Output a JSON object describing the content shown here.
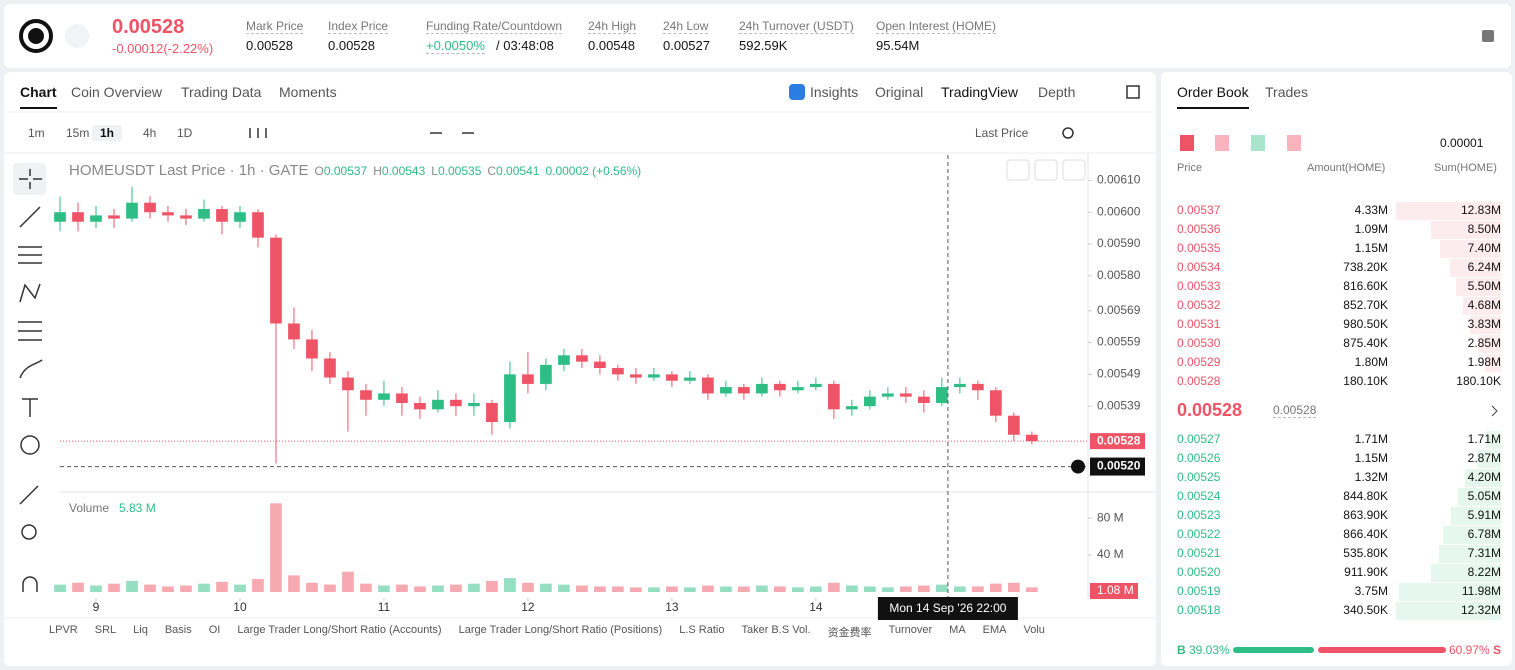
{
  "header": {
    "price": "0.00528",
    "change": "-0.00012(-2.22%)",
    "stats": [
      {
        "label": "Mark Price",
        "value": "0.00528"
      },
      {
        "label": "Index Price",
        "value": "0.00528"
      },
      {
        "label": "Funding Rate/Countdown",
        "value": "+0.0050%",
        "extra": "/ 03:48:08"
      },
      {
        "label": "24h High",
        "value": "0.00548"
      },
      {
        "label": "24h Low",
        "value": "0.00527"
      },
      {
        "label": "24h Turnover (USDT)",
        "value": "592.59K"
      },
      {
        "label": "Open Interest (HOME)",
        "value": "95.54M"
      }
    ]
  },
  "chart_panel": {
    "tabs": [
      "Chart",
      "Coin Overview",
      "Trading Data",
      "Moments"
    ],
    "views": [
      "Insights",
      "Original",
      "TradingView",
      "Depth"
    ],
    "intervals": [
      "1m",
      "15m",
      "1h",
      "4h",
      "1D"
    ],
    "price_type": "Last Price",
    "legend": {
      "symbol": "HOMEUSDT Last Price · 1h · GATE",
      "ohlc": [
        [
          "O",
          "0.00537"
        ],
        [
          "H",
          "0.00543"
        ],
        [
          "L",
          "0.00535"
        ],
        [
          "C",
          "0.00541"
        ]
      ],
      "change": "0.00002 (+0.56%)"
    },
    "indicators": [
      "LPVR",
      "SRL",
      "Liq",
      "Basis",
      "OI",
      "Large Trader Long/Short Ratio (Accounts)",
      "Large Trader Long/Short Ratio (Positions)",
      "L.S Ratio",
      "Taker B.S Vol.",
      "资金费率",
      "Turnover",
      "MA",
      "EMA",
      "Volu"
    ]
  },
  "chart_data": {
    "type": "candlestick",
    "up_color": "#2ebd85",
    "down_color": "#ef5466",
    "xlim": [
      8.75,
      15.89
    ],
    "xticks": [
      9,
      10,
      11,
      12,
      13,
      14
    ],
    "ylim": [
      0.00512,
      0.00618
    ],
    "yticks": [
      {
        "value": 0.0061,
        "label": "0.00610"
      },
      {
        "value": 0.006,
        "label": "0.00600"
      },
      {
        "value": 0.0059,
        "label": "0.00590"
      },
      {
        "value": 0.0058,
        "label": "0.00580"
      },
      {
        "value": 0.00569,
        "label": "0.00569"
      },
      {
        "value": 0.00559,
        "label": "0.00559"
      },
      {
        "value": 0.00549,
        "label": "0.00549"
      },
      {
        "value": 0.00539,
        "label": "0.00539"
      }
    ],
    "last_price": {
      "value": 0.00528,
      "label": "0.00528"
    },
    "cursor_price": {
      "value": 0.0052,
      "label": "0.00520"
    },
    "cursor_x": {
      "value": 14.917,
      "label": "Mon 14 Sep '26   22:00"
    },
    "candles": [
      [
        8.75,
        0.00597,
        0.00605,
        0.00594,
        0.006,
        8
      ],
      [
        8.875,
        0.006,
        0.00603,
        0.00594,
        0.00597,
        10
      ],
      [
        9.0,
        0.00597,
        0.00602,
        0.00595,
        0.00599,
        7
      ],
      [
        9.125,
        0.00599,
        0.00601,
        0.00595,
        0.00598,
        9
      ],
      [
        9.25,
        0.00598,
        0.00608,
        0.00597,
        0.00603,
        12
      ],
      [
        9.375,
        0.00603,
        0.00605,
        0.00598,
        0.006,
        8
      ],
      [
        9.5,
        0.006,
        0.00602,
        0.00597,
        0.00599,
        6
      ],
      [
        9.625,
        0.00599,
        0.00601,
        0.00596,
        0.00598,
        7
      ],
      [
        9.75,
        0.00598,
        0.00604,
        0.00597,
        0.00601,
        9
      ],
      [
        9.875,
        0.00601,
        0.00602,
        0.00593,
        0.00597,
        11
      ],
      [
        10.0,
        0.00597,
        0.00602,
        0.00595,
        0.006,
        8
      ],
      [
        10.125,
        0.006,
        0.00601,
        0.00589,
        0.00592,
        14
      ],
      [
        10.25,
        0.00592,
        0.00593,
        0.00521,
        0.00565,
        96
      ],
      [
        10.375,
        0.00565,
        0.0057,
        0.00557,
        0.0056,
        18
      ],
      [
        10.5,
        0.0056,
        0.00563,
        0.0055,
        0.00554,
        10
      ],
      [
        10.625,
        0.00554,
        0.00556,
        0.00546,
        0.00548,
        8
      ],
      [
        10.75,
        0.00548,
        0.0055,
        0.00531,
        0.00544,
        22
      ],
      [
        10.875,
        0.00544,
        0.00546,
        0.00536,
        0.00541,
        9
      ],
      [
        11.0,
        0.00541,
        0.00547,
        0.00539,
        0.00543,
        7
      ],
      [
        11.125,
        0.00543,
        0.00545,
        0.00536,
        0.0054,
        8
      ],
      [
        11.25,
        0.0054,
        0.00542,
        0.00535,
        0.00538,
        6
      ],
      [
        11.375,
        0.00538,
        0.00544,
        0.00537,
        0.00541,
        7
      ],
      [
        11.5,
        0.00541,
        0.00543,
        0.00536,
        0.00539,
        8
      ],
      [
        11.625,
        0.00539,
        0.00543,
        0.00536,
        0.0054,
        9
      ],
      [
        11.75,
        0.0054,
        0.00541,
        0.0053,
        0.00534,
        12
      ],
      [
        11.875,
        0.00534,
        0.00553,
        0.00532,
        0.00549,
        15
      ],
      [
        12.0,
        0.00549,
        0.00556,
        0.00543,
        0.00546,
        10
      ],
      [
        12.125,
        0.00546,
        0.00554,
        0.00544,
        0.00552,
        9
      ],
      [
        12.25,
        0.00552,
        0.00557,
        0.0055,
        0.00555,
        8
      ],
      [
        12.375,
        0.00555,
        0.00557,
        0.00551,
        0.00553,
        7
      ],
      [
        12.5,
        0.00553,
        0.00555,
        0.00549,
        0.00551,
        6
      ],
      [
        12.625,
        0.00551,
        0.00552,
        0.00547,
        0.00549,
        6
      ],
      [
        12.75,
        0.00549,
        0.00551,
        0.00546,
        0.00548,
        5
      ],
      [
        12.875,
        0.00548,
        0.00551,
        0.00547,
        0.00549,
        5
      ],
      [
        13.0,
        0.00549,
        0.0055,
        0.00545,
        0.00547,
        6
      ],
      [
        13.125,
        0.00547,
        0.0055,
        0.00546,
        0.00548,
        5
      ],
      [
        13.25,
        0.00548,
        0.00549,
        0.00541,
        0.00543,
        7
      ],
      [
        13.375,
        0.00543,
        0.00547,
        0.00542,
        0.00545,
        6
      ],
      [
        13.5,
        0.00545,
        0.00546,
        0.00541,
        0.00543,
        6
      ],
      [
        13.625,
        0.00543,
        0.00548,
        0.00542,
        0.00546,
        7
      ],
      [
        13.75,
        0.00546,
        0.00547,
        0.00542,
        0.00544,
        6
      ],
      [
        13.875,
        0.00544,
        0.00547,
        0.00543,
        0.00545,
        5
      ],
      [
        14.0,
        0.00545,
        0.00548,
        0.00544,
        0.00546,
        6
      ],
      [
        14.125,
        0.00546,
        0.00547,
        0.00535,
        0.00538,
        10
      ],
      [
        14.25,
        0.00538,
        0.00541,
        0.00536,
        0.00539,
        7
      ],
      [
        14.375,
        0.00539,
        0.00544,
        0.00538,
        0.00542,
        6
      ],
      [
        14.5,
        0.00542,
        0.00545,
        0.00541,
        0.00543,
        5
      ],
      [
        14.625,
        0.00543,
        0.00545,
        0.0054,
        0.00542,
        6
      ],
      [
        14.75,
        0.00542,
        0.00544,
        0.00537,
        0.0054,
        7
      ],
      [
        14.875,
        0.0054,
        0.00548,
        0.00539,
        0.00545,
        8
      ],
      [
        15.0,
        0.00545,
        0.00548,
        0.00543,
        0.00546,
        6
      ],
      [
        15.125,
        0.00546,
        0.00547,
        0.00541,
        0.00544,
        6
      ],
      [
        15.25,
        0.00544,
        0.00545,
        0.00534,
        0.00536,
        9
      ],
      [
        15.375,
        0.00536,
        0.00537,
        0.00528,
        0.0053,
        10
      ],
      [
        15.5,
        0.0053,
        0.00531,
        0.00527,
        0.00528,
        5
      ]
    ],
    "volume": {
      "title": "Volume",
      "current": "5.83 M",
      "ylim": [
        0,
        105
      ],
      "yticks": [
        {
          "value": 80,
          "label": "80 M"
        },
        {
          "value": 40,
          "label": "40 M"
        }
      ],
      "last": {
        "value": 1.08,
        "label": "1.08 M"
      }
    }
  },
  "order_book": {
    "tabs": [
      "Order Book",
      "Trades"
    ],
    "precision": "0.00001",
    "columns": [
      "Price",
      "Amount(HOME)",
      "Sum(HOME)"
    ],
    "asks": [
      [
        "0.00537",
        "4.33M",
        "12.83M"
      ],
      [
        "0.00536",
        "1.09M",
        "8.50M"
      ],
      [
        "0.00535",
        "1.15M",
        "7.40M"
      ],
      [
        "0.00534",
        "738.20K",
        "6.24M"
      ],
      [
        "0.00533",
        "816.60K",
        "5.50M"
      ],
      [
        "0.00532",
        "852.70K",
        "4.68M"
      ],
      [
        "0.00531",
        "980.50K",
        "3.83M"
      ],
      [
        "0.00530",
        "875.40K",
        "2.85M"
      ],
      [
        "0.00529",
        "1.80M",
        "1.98M"
      ],
      [
        "0.00528",
        "180.10K",
        "180.10K"
      ]
    ],
    "mid_price": "0.00528",
    "mark_price": "0.00528",
    "bids": [
      [
        "0.00527",
        "1.71M",
        "1.71M"
      ],
      [
        "0.00526",
        "1.15M",
        "2.87M"
      ],
      [
        "0.00525",
        "1.32M",
        "4.20M"
      ],
      [
        "0.00524",
        "844.80K",
        "5.05M"
      ],
      [
        "0.00523",
        "863.90K",
        "5.91M"
      ],
      [
        "0.00522",
        "866.40K",
        "6.78M"
      ],
      [
        "0.00521",
        "535.80K",
        "7.31M"
      ],
      [
        "0.00520",
        "911.90K",
        "8.22M"
      ],
      [
        "0.00519",
        "3.75M",
        "11.98M"
      ],
      [
        "0.00518",
        "340.50K",
        "12.32M"
      ]
    ],
    "buy_letter": "B",
    "buy": {
      "value": 39.03,
      "label": "39.03%"
    },
    "sell": {
      "value": 60.97,
      "label": "60.97%"
    },
    "sell_letter": "S"
  }
}
